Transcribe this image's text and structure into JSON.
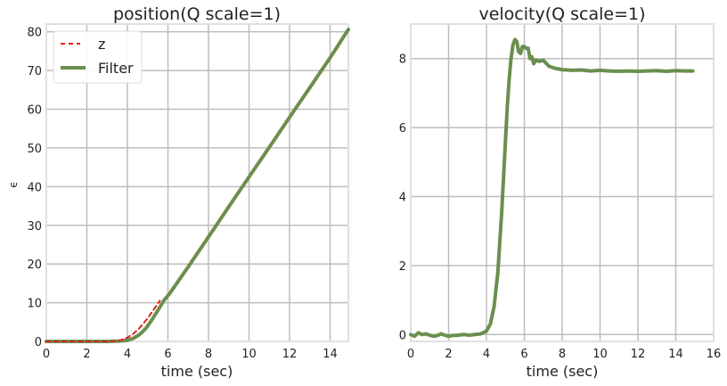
{
  "chart_data": [
    {
      "type": "line",
      "title": "position(Q scale=1)",
      "xlabel": "time (sec)",
      "ylabel": "ϵ",
      "xlim": [
        0,
        14.9
      ],
      "ylim": [
        0,
        82
      ],
      "xticks": [
        0,
        2,
        4,
        6,
        8,
        10,
        12,
        14
      ],
      "yticks": [
        0,
        10,
        20,
        30,
        40,
        50,
        60,
        70,
        80
      ],
      "grid": true,
      "legend": "top-left",
      "series": [
        {
          "name": "z",
          "style": "dashed",
          "color": "#dd2222",
          "x": [
            0,
            1,
            2,
            3,
            3.6,
            4,
            4.3,
            4.6,
            5.0,
            5.2,
            5.4,
            5.6
          ],
          "y": [
            0,
            0,
            0,
            0,
            0.2,
            1.0,
            2.0,
            3.5,
            6.0,
            7.5,
            9.0,
            10.5
          ]
        },
        {
          "name": "Filter",
          "style": "solid",
          "color": "#6a8f4e",
          "x": [
            0,
            1,
            2,
            3,
            3.6,
            4.0,
            4.3,
            4.6,
            4.9,
            5.2,
            5.5,
            5.8,
            6.1,
            6.5,
            7,
            8,
            9,
            10,
            11,
            12,
            13,
            14,
            14.9
          ],
          "y": [
            0,
            0,
            0,
            0,
            0.1,
            0.3,
            0.8,
            1.8,
            3.3,
            5.5,
            8.0,
            10.6,
            12.5,
            15.5,
            19.3,
            27.0,
            34.8,
            42.5,
            50.2,
            57.9,
            65.6,
            73.3,
            80.6
          ]
        }
      ]
    },
    {
      "type": "line",
      "title": "velocity(Q scale=1)",
      "xlabel": "time (sec)",
      "ylabel": "",
      "xlim": [
        0,
        16
      ],
      "ylim": [
        -0.2,
        9
      ],
      "xticks": [
        0,
        2,
        4,
        6,
        8,
        10,
        12,
        14,
        16
      ],
      "yticks": [
        0,
        2,
        4,
        6,
        8
      ],
      "grid": true,
      "series": [
        {
          "name": "Filter",
          "style": "solid",
          "color": "#6a8f4e",
          "x": [
            0,
            0.2,
            0.4,
            0.6,
            0.8,
            1.0,
            1.2,
            1.4,
            1.6,
            1.8,
            2.0,
            2.2,
            2.5,
            2.8,
            3.1,
            3.4,
            3.7,
            4.0,
            4.2,
            4.4,
            4.6,
            4.8,
            4.9,
            5.0,
            5.1,
            5.2,
            5.3,
            5.4,
            5.5,
            5.6,
            5.7,
            5.8,
            5.9,
            6.0,
            6.1,
            6.2,
            6.3,
            6.4,
            6.5,
            6.6,
            6.8,
            7.0,
            7.3,
            7.6,
            8.0,
            8.5,
            9,
            9.5,
            10,
            10.5,
            11,
            11.5,
            12,
            12.5,
            13,
            13.5,
            14,
            14.5,
            14.9
          ],
          "y": [
            0.0,
            -0.05,
            0.05,
            0.0,
            0.02,
            -0.02,
            -0.05,
            -0.03,
            0.02,
            -0.02,
            -0.05,
            -0.03,
            -0.02,
            0.0,
            -0.02,
            0.0,
            0.02,
            0.1,
            0.3,
            0.8,
            1.8,
            3.5,
            4.5,
            5.6,
            6.6,
            7.4,
            8.0,
            8.4,
            8.55,
            8.5,
            8.2,
            8.15,
            8.35,
            8.35,
            8.3,
            8.3,
            8.0,
            8.05,
            7.85,
            7.95,
            7.92,
            7.95,
            7.78,
            7.72,
            7.68,
            7.66,
            7.67,
            7.64,
            7.66,
            7.64,
            7.63,
            7.64,
            7.63,
            7.64,
            7.65,
            7.63,
            7.65,
            7.64,
            7.64
          ]
        }
      ]
    }
  ]
}
